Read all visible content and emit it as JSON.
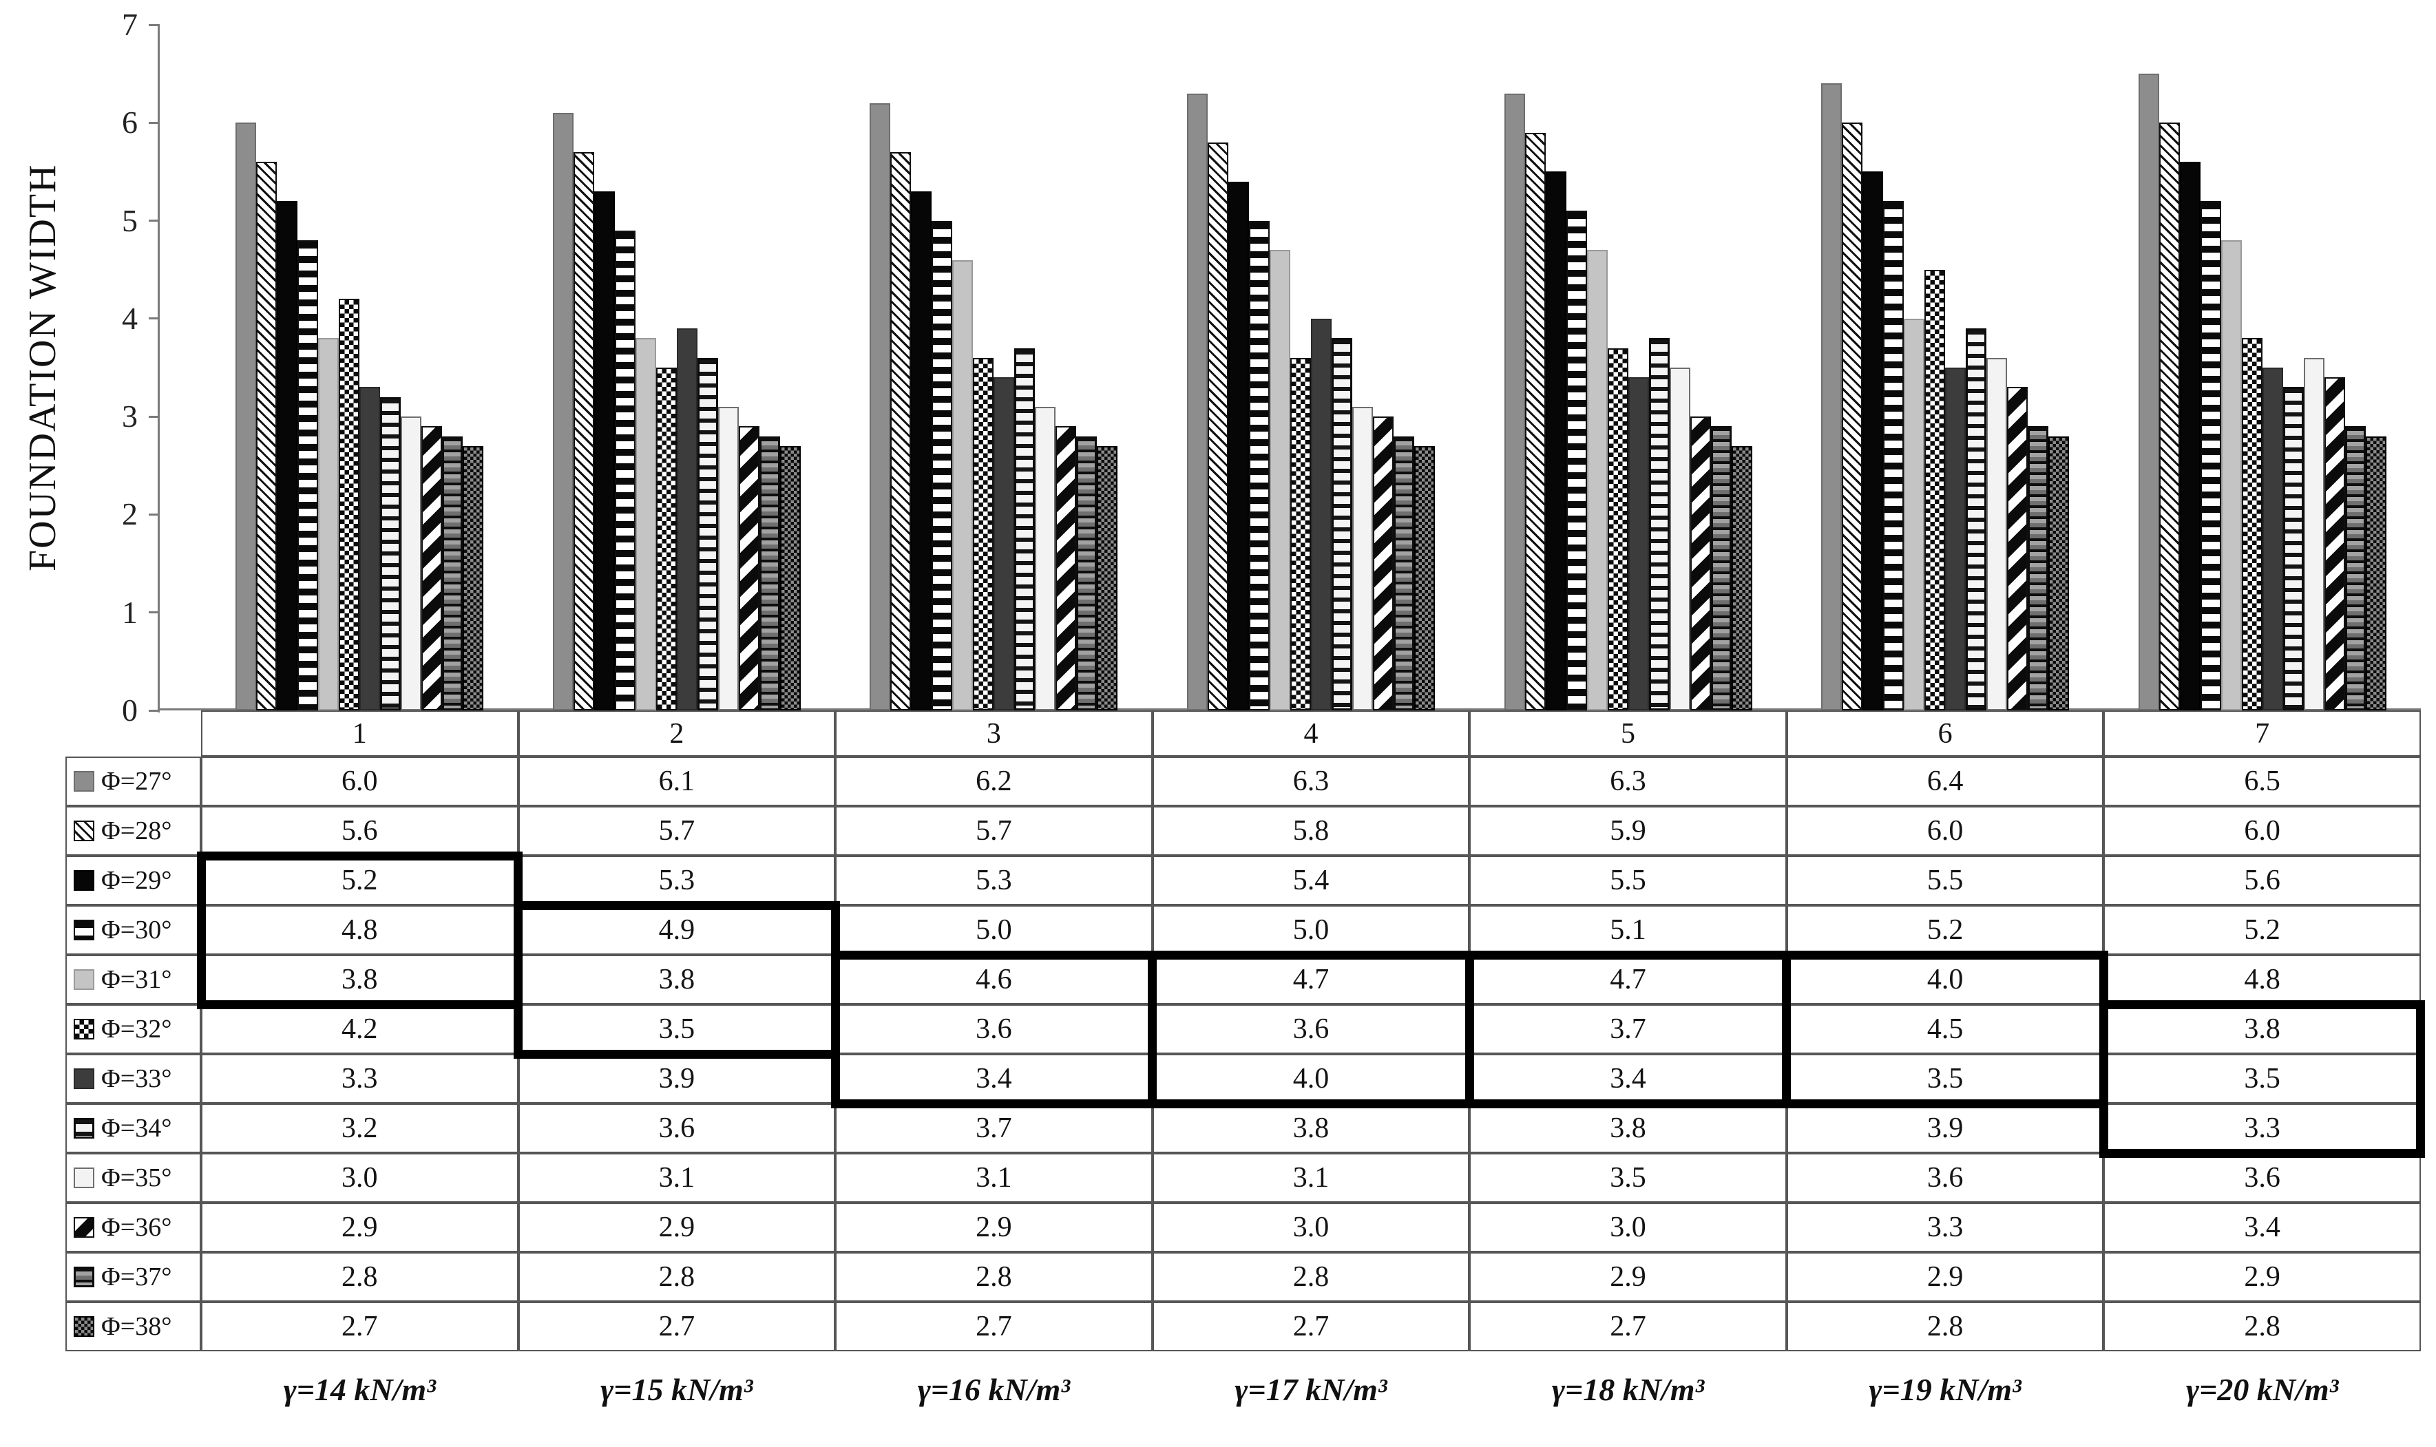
{
  "chart_data": {
    "type": "bar",
    "title": "",
    "ylabel": "FOUNDATION WIDTH",
    "xlabel": "",
    "ylim": [
      0,
      7
    ],
    "yticks": [
      0,
      1,
      2,
      3,
      4,
      5,
      6,
      7
    ],
    "grid": false,
    "legend_position": "table-left-column",
    "categories": [
      "1",
      "2",
      "3",
      "4",
      "5",
      "6",
      "7"
    ],
    "group_footnotes": [
      "γ=14 kN/m³",
      "γ=15 kN/m³",
      "γ=16 kN/m³",
      "γ=17 kN/m³",
      "γ=18 kN/m³",
      "γ=19 kN/m³",
      "γ=20 kN/m³"
    ],
    "value_format_decimals": 1,
    "series": [
      {
        "name": "Φ=27°",
        "pattern": "solid-medium-gray",
        "values": [
          6.0,
          6.1,
          6.2,
          6.3,
          6.3,
          6.4,
          6.5
        ]
      },
      {
        "name": "Φ=28°",
        "pattern": "diagonal-hatch-fine",
        "values": [
          5.6,
          5.7,
          5.7,
          5.8,
          5.9,
          6.0,
          6.0
        ]
      },
      {
        "name": "Φ=29°",
        "pattern": "solid-black",
        "values": [
          5.2,
          5.3,
          5.3,
          5.4,
          5.5,
          5.5,
          5.6
        ]
      },
      {
        "name": "Φ=30°",
        "pattern": "horizontal-stripes-bold",
        "values": [
          4.8,
          4.9,
          5.0,
          5.0,
          5.1,
          5.2,
          5.2
        ]
      },
      {
        "name": "Φ=31°",
        "pattern": "solid-light-gray",
        "values": [
          3.8,
          3.8,
          4.6,
          4.7,
          4.7,
          4.0,
          4.8
        ]
      },
      {
        "name": "Φ=32°",
        "pattern": "checker-dots",
        "values": [
          4.2,
          3.5,
          3.6,
          3.6,
          3.7,
          4.5,
          3.8
        ]
      },
      {
        "name": "Φ=33°",
        "pattern": "solid-dark-gray",
        "values": [
          3.3,
          3.9,
          3.4,
          4.0,
          3.4,
          3.5,
          3.5
        ]
      },
      {
        "name": "Φ=34°",
        "pattern": "horizontal-stripes-fine",
        "values": [
          3.2,
          3.6,
          3.7,
          3.8,
          3.8,
          3.9,
          3.3
        ]
      },
      {
        "name": "Φ=35°",
        "pattern": "solid-white",
        "values": [
          3.0,
          3.1,
          3.1,
          3.1,
          3.5,
          3.6,
          3.6
        ]
      },
      {
        "name": "Φ=36°",
        "pattern": "diagonal-stripes-wide",
        "values": [
          2.9,
          2.9,
          2.9,
          3.0,
          3.0,
          3.3,
          3.4
        ]
      },
      {
        "name": "Φ=37°",
        "pattern": "gray-horizontal-lines",
        "values": [
          2.8,
          2.8,
          2.8,
          2.8,
          2.9,
          2.9,
          2.9
        ]
      },
      {
        "name": "Φ=38°",
        "pattern": "dark-checker-dots",
        "values": [
          2.7,
          2.7,
          2.7,
          2.7,
          2.7,
          2.8,
          2.8
        ]
      }
    ],
    "highlight_boxes": [
      {
        "col": 0,
        "row_start": 2,
        "row_end": 4
      },
      {
        "col": 1,
        "row_start": 3,
        "row_end": 5
      },
      {
        "col": 2,
        "row_start": 4,
        "row_end": 6
      },
      {
        "col": 3,
        "row_start": 4,
        "row_end": 6
      },
      {
        "col": 4,
        "row_start": 4,
        "row_end": 6
      },
      {
        "col": 5,
        "row_start": 4,
        "row_end": 6
      },
      {
        "col": 6,
        "row_start": 5,
        "row_end": 7
      }
    ],
    "colors": {
      "axis": "#7a7a7a",
      "grid_border": "#565656",
      "highlight": "#000000",
      "text": "#141414"
    }
  }
}
